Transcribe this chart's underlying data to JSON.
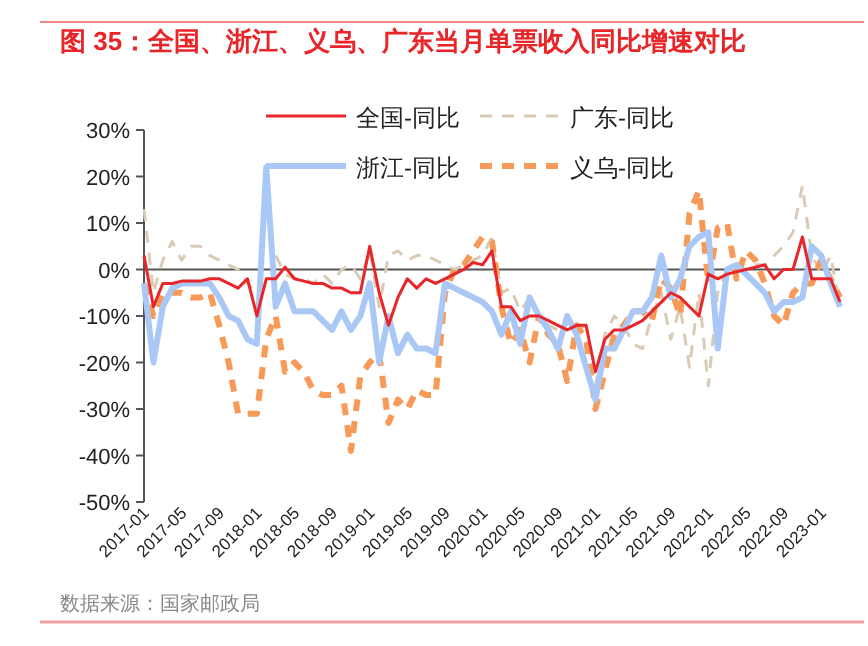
{
  "chart_data": {
    "type": "line",
    "title": "图 35：全国、浙江、义乌、广东当月单票收入同比增速对比",
    "categories": [
      "2017-01",
      null,
      null,
      null,
      "2017-05",
      null,
      null,
      null,
      "2017-09",
      null,
      null,
      null,
      "2018-01",
      null,
      null,
      null,
      "2018-05",
      null,
      null,
      null,
      "2018-09",
      null,
      null,
      null,
      "2019-01",
      null,
      null,
      null,
      "2019-05",
      null,
      null,
      null,
      "2019-09",
      null,
      null,
      null,
      "2020-01",
      null,
      null,
      null,
      "2020-05",
      null,
      null,
      null,
      "2020-09",
      null,
      null,
      null,
      "2021-01",
      null,
      null,
      null,
      "2021-05",
      null,
      null,
      null,
      "2021-09",
      null,
      null,
      null,
      "2022-01",
      null,
      null,
      null,
      "2022-05",
      null,
      null,
      null,
      "2022-09",
      null,
      null,
      null,
      "2023-01",
      null,
      null
    ],
    "series": [
      {
        "name": "全国-同比",
        "color": "#e8262a",
        "line_style": "solid",
        "values": [
          3,
          -8,
          -3,
          -3,
          -2.5,
          -2.5,
          -2.5,
          -2,
          -2,
          -3,
          -4,
          -2,
          -10,
          -2,
          -2,
          0.5,
          -2,
          -2.5,
          -3,
          -3,
          -4,
          -4,
          -5,
          -5,
          5,
          -5,
          -12,
          -6,
          -2,
          -4,
          -2,
          -3,
          -2,
          -1,
          0,
          1.5,
          1,
          4,
          -8,
          -8,
          -11,
          -10,
          -10,
          -11,
          -12,
          -13,
          -12,
          -12,
          -22,
          -15,
          -13,
          -13,
          -12,
          -11,
          -9,
          -7,
          -5,
          -6,
          -8,
          -10,
          -1,
          -2,
          -1,
          -0.5,
          0,
          0.5,
          1,
          -2,
          0,
          0,
          7,
          -2,
          -2,
          -2,
          -7
        ]
      },
      {
        "name": "广东-同比",
        "color": "#d9cbb5",
        "line_style": "dashed",
        "values": [
          13,
          -5,
          2,
          6,
          2,
          5,
          5,
          3,
          2,
          1,
          0,
          -3,
          -5,
          null,
          3,
          -1,
          -2,
          -2,
          -3,
          -1,
          -3,
          0,
          1,
          -2,
          4,
          -8,
          3,
          4,
          2,
          3,
          3,
          2,
          1,
          0,
          1,
          2,
          3,
          7,
          -5,
          -4,
          -9,
          -6,
          -10,
          -12,
          -13,
          -11,
          -13,
          -12,
          -25,
          -14,
          -10,
          -12,
          -16,
          -17,
          -10,
          -5,
          -15,
          -8,
          -21,
          -5,
          -25,
          -5,
          0,
          1,
          0,
          1,
          1,
          3,
          5,
          8,
          18,
          3,
          -1,
          3,
          -8
        ]
      },
      {
        "name": "浙江-同比",
        "color": "#a9c8f5",
        "line_style": "solid",
        "values": [
          -3,
          -20,
          -8,
          -4,
          -3,
          -3,
          -3,
          -3,
          -6,
          -10,
          -11,
          -15,
          -16,
          22,
          -8,
          -3,
          -9,
          -9,
          -9,
          -11,
          -13,
          -9,
          -13,
          -10,
          -3,
          -20,
          -10,
          -18,
          -14,
          -17,
          -17,
          -18,
          -3,
          -4,
          -5,
          -6,
          -7,
          -9,
          -14,
          -9,
          -16,
          -6,
          -10,
          -13,
          -17,
          -10,
          -14,
          -21,
          -28,
          -17,
          -17,
          -13,
          -9,
          -9,
          -6,
          3,
          -6,
          -2,
          5,
          7,
          8,
          -17,
          0,
          1,
          -1,
          -3,
          -5,
          -9,
          -7,
          -7,
          -6,
          5,
          3,
          -3,
          -8
        ]
      },
      {
        "name": "义乌-同比",
        "color": "#f79a57",
        "line_style": "dashed",
        "values": [
          -3,
          -10,
          -5,
          -5,
          -5,
          -6,
          -6,
          -5,
          -12,
          -20,
          -31,
          -31,
          -31,
          -15,
          -10,
          -22,
          -20,
          -22,
          -26,
          -27,
          -27,
          -25,
          -39,
          -23,
          -20,
          -18,
          -33,
          -28,
          -30,
          -26,
          -27,
          -27,
          -5,
          0,
          1,
          4,
          7,
          6,
          -8,
          -16,
          -13,
          -20,
          -10,
          -14,
          -16,
          -24,
          -12,
          -15,
          -30,
          -22,
          -14,
          -12,
          -9,
          -9,
          -11,
          -2,
          -4,
          -10,
          12,
          17,
          -3,
          9,
          10,
          -2,
          4,
          2,
          -3,
          -10,
          -12,
          -5,
          -3,
          -3,
          2,
          -2,
          -6
        ]
      }
    ],
    "ylim": [
      -50,
      30
    ],
    "yticks": [
      {
        "value": 30,
        "label": "30%"
      },
      {
        "value": 20,
        "label": "20%"
      },
      {
        "value": 10,
        "label": "10%"
      },
      {
        "value": 0,
        "label": "0%"
      },
      {
        "value": -10,
        "label": "-10%"
      },
      {
        "value": -20,
        "label": "-20%"
      },
      {
        "value": -30,
        "label": "-30%"
      },
      {
        "value": -40,
        "label": "-40%"
      },
      {
        "value": -50,
        "label": "-50%"
      }
    ],
    "legend": "top",
    "annotations": [
      "数据来源：国家邮政局"
    ]
  }
}
